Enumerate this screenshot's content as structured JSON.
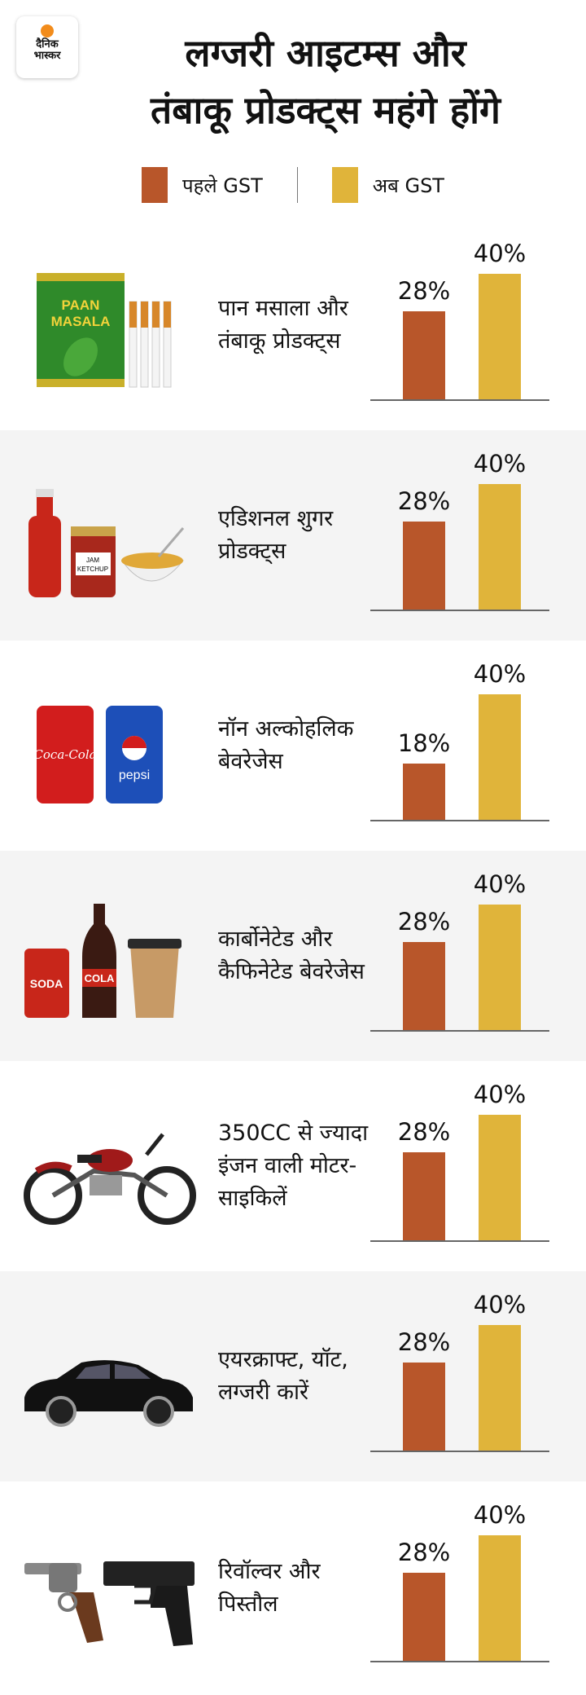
{
  "logo": {
    "line1": "दैनिक",
    "line2": "भास्कर"
  },
  "title": {
    "line1": "लग्जरी आइटम्स और",
    "line2": "तंबाकू प्रोडक्ट्स महंगे होंगे"
  },
  "colors": {
    "before": "#b8562a",
    "after": "#e0b43a"
  },
  "chart_data": {
    "type": "bar",
    "legend": [
      {
        "name": "पहले GST",
        "color": "#b8562a"
      },
      {
        "name": "अब GST",
        "color": "#e0b43a"
      }
    ],
    "legend_position": "top",
    "categories": [
      {
        "label": "पान मसाला और तंबाकू प्रोडक्ट्स",
        "before": 28,
        "after": 40,
        "before_label": "28%",
        "after_label": "40%",
        "icon": "paan-masala-cigarettes-image"
      },
      {
        "label": "एडिशनल शुगर प्रोडक्ट्स",
        "before": 28,
        "after": 40,
        "before_label": "28%",
        "after_label": "40%",
        "icon": "ketchup-jam-cereal-image"
      },
      {
        "label": "नॉन अल्कोहलिक बेवरेजेस",
        "before": 18,
        "after": 40,
        "before_label": "18%",
        "after_label": "40%",
        "icon": "soft-drink-cans-image"
      },
      {
        "label": "कार्बोनेटेड और कैफिनेटेड बेवरेजेस",
        "before": 28,
        "after": 40,
        "before_label": "28%",
        "after_label": "40%",
        "icon": "soda-cola-coffee-image"
      },
      {
        "label": "350CC से ज्यादा इंजन वाली मोटर-साइकिलें",
        "before": 28,
        "after": 40,
        "before_label": "28%",
        "after_label": "40%",
        "icon": "motorcycle-image"
      },
      {
        "label": "एयरक्राफ्ट, यॉट, लग्जरी कारें",
        "before": 28,
        "after": 40,
        "before_label": "28%",
        "after_label": "40%",
        "icon": "luxury-car-image"
      },
      {
        "label": "रिवॉल्वर और पिस्तौल",
        "before": 28,
        "after": 40,
        "before_label": "28%",
        "after_label": "40%",
        "icon": "revolver-pistol-image"
      }
    ],
    "ylim": [
      0,
      40
    ],
    "grid": false
  }
}
